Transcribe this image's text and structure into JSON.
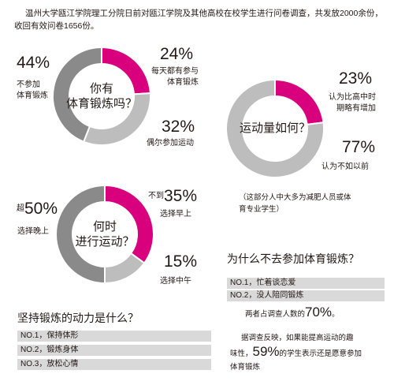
{
  "intro": "温州大学瓯江学院理工分院日前对瓯江学院及其他高校在校学生进行问卷调查，共发放2000余份，收回有效问卷1656份。",
  "colors": {
    "highlight": "#d9007e",
    "dark": "#8a8a8a",
    "light": "#bdbdbd"
  },
  "chart_data": [
    {
      "type": "pie",
      "title": "你有体育锻炼吗？",
      "series": [
        {
          "name": "每天都有参与体育锻炼",
          "values": [
            24
          ],
          "color": "#d9007e",
          "value_label": "24%"
        },
        {
          "name": "偶尔参加运动",
          "values": [
            32
          ],
          "color": "#bdbdbd",
          "value_label": "32%"
        },
        {
          "name": "不参加体育锻炼",
          "values": [
            44
          ],
          "color": "#8a8a8a",
          "value_label": "44%"
        }
      ]
    },
    {
      "type": "pie",
      "title": "运动量如何？",
      "series": [
        {
          "name": "认为比高中时期略有增加",
          "values": [
            23
          ],
          "color": "#d9007e",
          "value_label": "23%"
        },
        {
          "name": "认为不如以前",
          "values": [
            77
          ],
          "color": "#bdbdbd",
          "value_label": "77%"
        }
      ]
    },
    {
      "type": "pie",
      "title": "何时进行运动？",
      "series": [
        {
          "name": "选择早上",
          "values": [
            35
          ],
          "color": "#d9007e",
          "value_label": "35%",
          "prefix": "不到"
        },
        {
          "name": "选择中午",
          "values": [
            15
          ],
          "color": "#bdbdbd",
          "value_label": "15%"
        },
        {
          "name": "选择晚上",
          "values": [
            50
          ],
          "color": "#8a8a8a",
          "value_label": "50%",
          "prefix": "超"
        }
      ]
    }
  ],
  "donut1": {
    "title1": "你有",
    "title2": "体育锻炼吗？",
    "pct_a": "24%",
    "label_a1": "每天都有参与",
    "label_a2": "体育锻炼",
    "pct_b": "32%",
    "label_b": "偶尔参加运动",
    "pct_c": "44%",
    "label_c1": "不参加",
    "label_c2": "体育锻炼"
  },
  "donut2": {
    "title": "运动量如何？",
    "pct_a": "23%",
    "label_a1": "认为比高中时",
    "label_a2": "期略有增加",
    "pct_b": "77%",
    "label_b": "认为不如以前",
    "note1": "（这部分人中大多为减肥人员或体",
    "note2": "育专业学生）"
  },
  "donut3": {
    "title1": "何时",
    "title2": "进行运动？",
    "prefix_a": "不到",
    "pct_a": "35%",
    "label_a": "选择早上",
    "pct_b": "15%",
    "label_b": "选择中午",
    "prefix_c": "超",
    "pct_c": "50%",
    "label_c": "选择晚上"
  },
  "motivation": {
    "title": "坚持锻炼的动力是什么？",
    "items": [
      "NO.1，保持体形",
      "NO.2，锻炼身体",
      "NO.3，放松心情"
    ]
  },
  "reasons": {
    "title": "为什么不去参加体育锻炼？",
    "items": [
      "NO.1，忙着谈恋爱",
      "NO.2，没人陪同锻炼"
    ],
    "note_pre": "两者占调查人数的",
    "note_pct": "70%",
    "note_post": "。"
  },
  "conclusion": {
    "line1": "据调查反映，如果能提高运动的趣",
    "line2_pre": "味性，",
    "line2_pct": "59%",
    "line2_post": "的学生表示还是愿意参加",
    "line3": "体育锻炼"
  }
}
